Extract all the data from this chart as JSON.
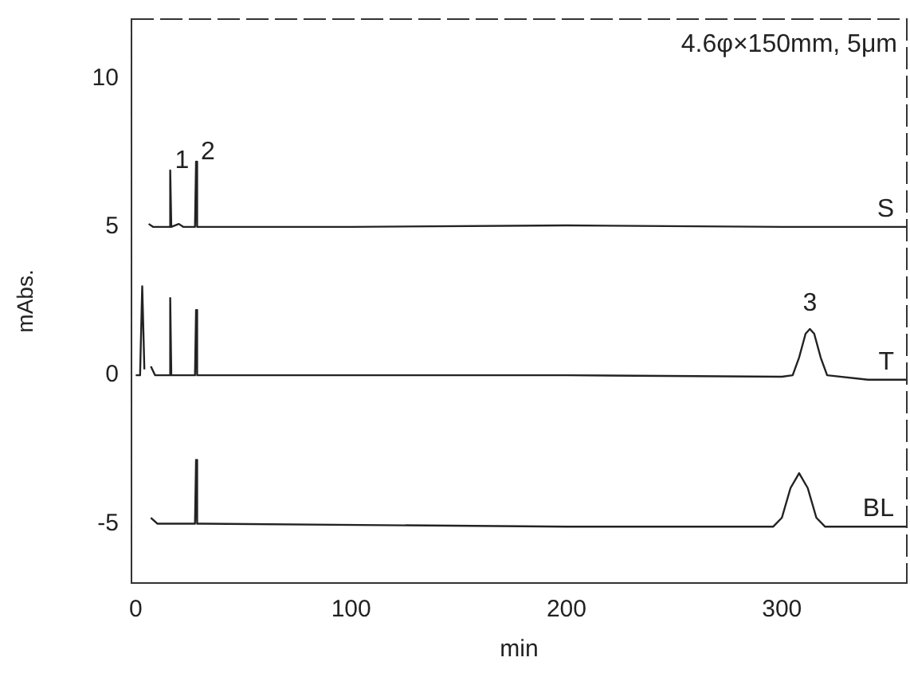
{
  "chart_data": {
    "type": "line",
    "xlabel": "min",
    "ylabel": "mAbs.",
    "xlim": [
      -2,
      358
    ],
    "ylim": [
      -7,
      12
    ],
    "xticks": [
      0,
      100,
      200,
      300
    ],
    "yticks": [
      -5,
      0,
      5,
      10
    ],
    "grid": false,
    "legend": false,
    "marker": "none",
    "line_style": "solid",
    "annotations": [
      "4.6φ×150mm, 5μm",
      {
        "text": "1",
        "x": 16,
        "y": 6.9
      },
      {
        "text": "2",
        "x": 28,
        "y": 7.2
      },
      {
        "text": "3",
        "x": 313,
        "y": 1.56
      }
    ],
    "series": [
      {
        "name": "S",
        "color": "#222222",
        "x": [
          6,
          8,
          15.5,
          16,
          16.5,
          20,
          22,
          27.5,
          28,
          28.5,
          100,
          200,
          300,
          358
        ],
        "values": [
          5.1,
          5,
          5,
          6.9,
          5,
          5.1,
          5,
          5,
          7.2,
          5,
          5,
          5.05,
          5,
          5
        ]
      },
      {
        "name": "T",
        "color": "#222222",
        "x": [
          0,
          2,
          3,
          4,
          6,
          7,
          9,
          15.5,
          16,
          16.5,
          27.5,
          28,
          28.5,
          200,
          300,
          305,
          308,
          311,
          313,
          315,
          318,
          321,
          340,
          358
        ],
        "values": [
          0,
          0,
          3,
          0.2,
          null,
          0.3,
          0,
          0,
          2.6,
          0,
          0,
          2.2,
          0,
          0,
          -0.05,
          0,
          0.6,
          1.4,
          1.56,
          1.4,
          0.6,
          0,
          -0.15,
          -0.15
        ]
      },
      {
        "name": "BL",
        "color": "#222222",
        "x": [
          7,
          10,
          27.5,
          28,
          28.5,
          200,
          296,
          300,
          304,
          308,
          312,
          316,
          320,
          358
        ],
        "values": [
          -4.8,
          -5,
          -5,
          -2.85,
          -5,
          -5.1,
          -5.1,
          -4.8,
          -3.8,
          -3.3,
          -3.8,
          -4.8,
          -5.1,
          -5.1
        ]
      }
    ]
  }
}
